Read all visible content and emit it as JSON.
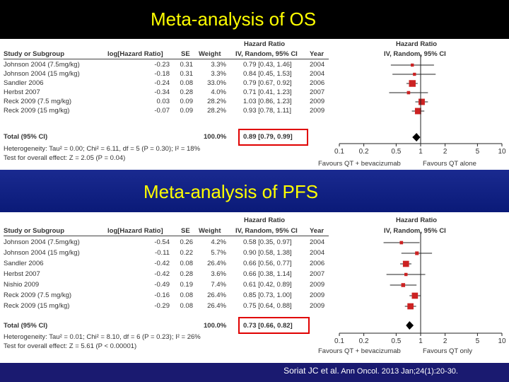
{
  "os": {
    "title": "Meta-analysis of OS",
    "hr_header": "Hazard Ratio",
    "hr_subheader": "IV, Random, 95% CI",
    "forest_header": "Hazard Ratio",
    "forest_subheader": "IV, Random, 95% CI",
    "columns": {
      "study": "Study or Subgroup",
      "log": "log[Hazard Ratio]",
      "se": "SE",
      "weight": "Weight",
      "year": "Year"
    },
    "rows": [
      {
        "study": "Johnson 2004 (7.5mg/kg)",
        "log": "-0.23",
        "se": "0.31",
        "weight": "3.3%",
        "ci": "0.79 [0.43, 1.46]",
        "year": "2004",
        "hr": 0.79,
        "lo": 0.43,
        "hi": 1.46,
        "w": 3.3
      },
      {
        "study": "Johnson 2004 (15 mg/kg)",
        "log": "-0.18",
        "se": "0.31",
        "weight": "3.3%",
        "ci": "0.84 [0.45, 1.53]",
        "year": "2004",
        "hr": 0.84,
        "lo": 0.45,
        "hi": 1.53,
        "w": 3.3
      },
      {
        "study": "Sandler 2006",
        "log": "-0.24",
        "se": "0.08",
        "weight": "33.0%",
        "ci": "0.79 [0.67, 0.92]",
        "year": "2006",
        "hr": 0.79,
        "lo": 0.67,
        "hi": 0.92,
        "w": 33.0
      },
      {
        "study": "Herbst 2007",
        "log": "-0.34",
        "se": "0.28",
        "weight": "4.0%",
        "ci": "0.71 [0.41, 1.23]",
        "year": "2007",
        "hr": 0.71,
        "lo": 0.41,
        "hi": 1.23,
        "w": 4.0
      },
      {
        "study": "Reck 2009 (7.5 mg/kg)",
        "log": "0.03",
        "se": "0.09",
        "weight": "28.2%",
        "ci": "1.03 [0.86, 1.23]",
        "year": "2009",
        "hr": 1.03,
        "lo": 0.86,
        "hi": 1.23,
        "w": 28.2
      },
      {
        "study": "Reck 2009 (15 mg/kg)",
        "log": "-0.07",
        "se": "0.09",
        "weight": "28.2%",
        "ci": "0.93 [0.78, 1.11]",
        "year": "2009",
        "hr": 0.93,
        "lo": 0.78,
        "hi": 1.11,
        "w": 28.2
      }
    ],
    "total": {
      "label": "Total (95% CI)",
      "weight": "100.0%",
      "ci": "0.89 [0.79, 0.99]",
      "hr": 0.89,
      "lo": 0.79,
      "hi": 0.99
    },
    "heterogeneity": "Heterogeneity: Tau² = 0.00; Chi² = 6.11, df = 5 (P = 0.30); I² = 18%",
    "overall_effect": "Test for overall effect: Z = 2.05 (P = 0.04)",
    "ticks": [
      "0.1",
      "0.2",
      "0.5",
      "1",
      "2",
      "5",
      "10"
    ],
    "favours_left": "Favours QT + bevacizumab",
    "favours_right": "Favours QT alone"
  },
  "pfs": {
    "title": "Meta-analysis of PFS",
    "hr_header": "Hazard Ratio",
    "hr_subheader": "IV, Random, 95% CI",
    "forest_header": "Hazard Ratio",
    "forest_subheader": "IV, Random, 95% CI",
    "columns": {
      "study": "Study or Subgroup",
      "log": "log[Hazard Ratio]",
      "se": "SE",
      "weight": "Weight",
      "year": "Year"
    },
    "rows": [
      {
        "study": "Johnson 2004 (7.5mg/kg)",
        "log": "-0.54",
        "se": "0.26",
        "weight": "4.2%",
        "ci": "0.58 [0.35, 0.97]",
        "year": "2004",
        "hr": 0.58,
        "lo": 0.35,
        "hi": 0.97,
        "w": 4.2
      },
      {
        "study": "Johnson 2004 (15 mg/kg)",
        "log": "-0.11",
        "se": "0.22",
        "weight": "5.7%",
        "ci": "0.90 [0.58, 1.38]",
        "year": "2004",
        "hr": 0.9,
        "lo": 0.58,
        "hi": 1.38,
        "w": 5.7
      },
      {
        "study": "Sandler 2006",
        "log": "-0.42",
        "se": "0.08",
        "weight": "26.4%",
        "ci": "0.66 [0.56, 0.77]",
        "year": "2006",
        "hr": 0.66,
        "lo": 0.56,
        "hi": 0.77,
        "w": 26.4
      },
      {
        "study": "Herbst 2007",
        "log": "-0.42",
        "se": "0.28",
        "weight": "3.6%",
        "ci": "0.66 [0.38, 1.14]",
        "year": "2007",
        "hr": 0.66,
        "lo": 0.38,
        "hi": 1.14,
        "w": 3.6
      },
      {
        "study": "Nishio 2009",
        "log": "-0.49",
        "se": "0.19",
        "weight": "7.4%",
        "ci": "0.61 [0.42, 0.89]",
        "year": "2009",
        "hr": 0.61,
        "lo": 0.42,
        "hi": 0.89,
        "w": 7.4
      },
      {
        "study": "Reck 2009 (7.5 mg/kg)",
        "log": "-0.16",
        "se": "0.08",
        "weight": "26.4%",
        "ci": "0.85 [0.73, 1.00]",
        "year": "2009",
        "hr": 0.85,
        "lo": 0.73,
        "hi": 1.0,
        "w": 26.4
      },
      {
        "study": "Reck 2009 (15 mg/kg)",
        "log": "-0.29",
        "se": "0.08",
        "weight": "26.4%",
        "ci": "0.75 [0.64, 0.88]",
        "year": "2009",
        "hr": 0.75,
        "lo": 0.64,
        "hi": 0.88,
        "w": 26.4
      }
    ],
    "total": {
      "label": "Total (95% CI)",
      "weight": "100.0%",
      "ci": "0.73 [0.66, 0.82]",
      "hr": 0.73,
      "lo": 0.66,
      "hi": 0.82
    },
    "heterogeneity": "Heterogeneity: Tau² = 0.01; Chi² = 8.10, df = 6 (P = 0.23); I² = 26%",
    "overall_effect": "Test for overall effect: Z = 5.61 (P < 0.00001)",
    "ticks": [
      "0.1",
      "0.2",
      "0.5",
      "1",
      "2",
      "5",
      "10"
    ],
    "favours_left": "Favours QT + bevacizumab",
    "favours_right": "Favours QT only"
  },
  "citation": {
    "author": "Soriat JC et al.",
    "source": "Ann Oncol. 2013 Jan;24(1):20-30."
  },
  "colors": {
    "title": "#ffff00",
    "square": "#cc2222",
    "highlight": "#e00000",
    "diamond": "#000000"
  }
}
